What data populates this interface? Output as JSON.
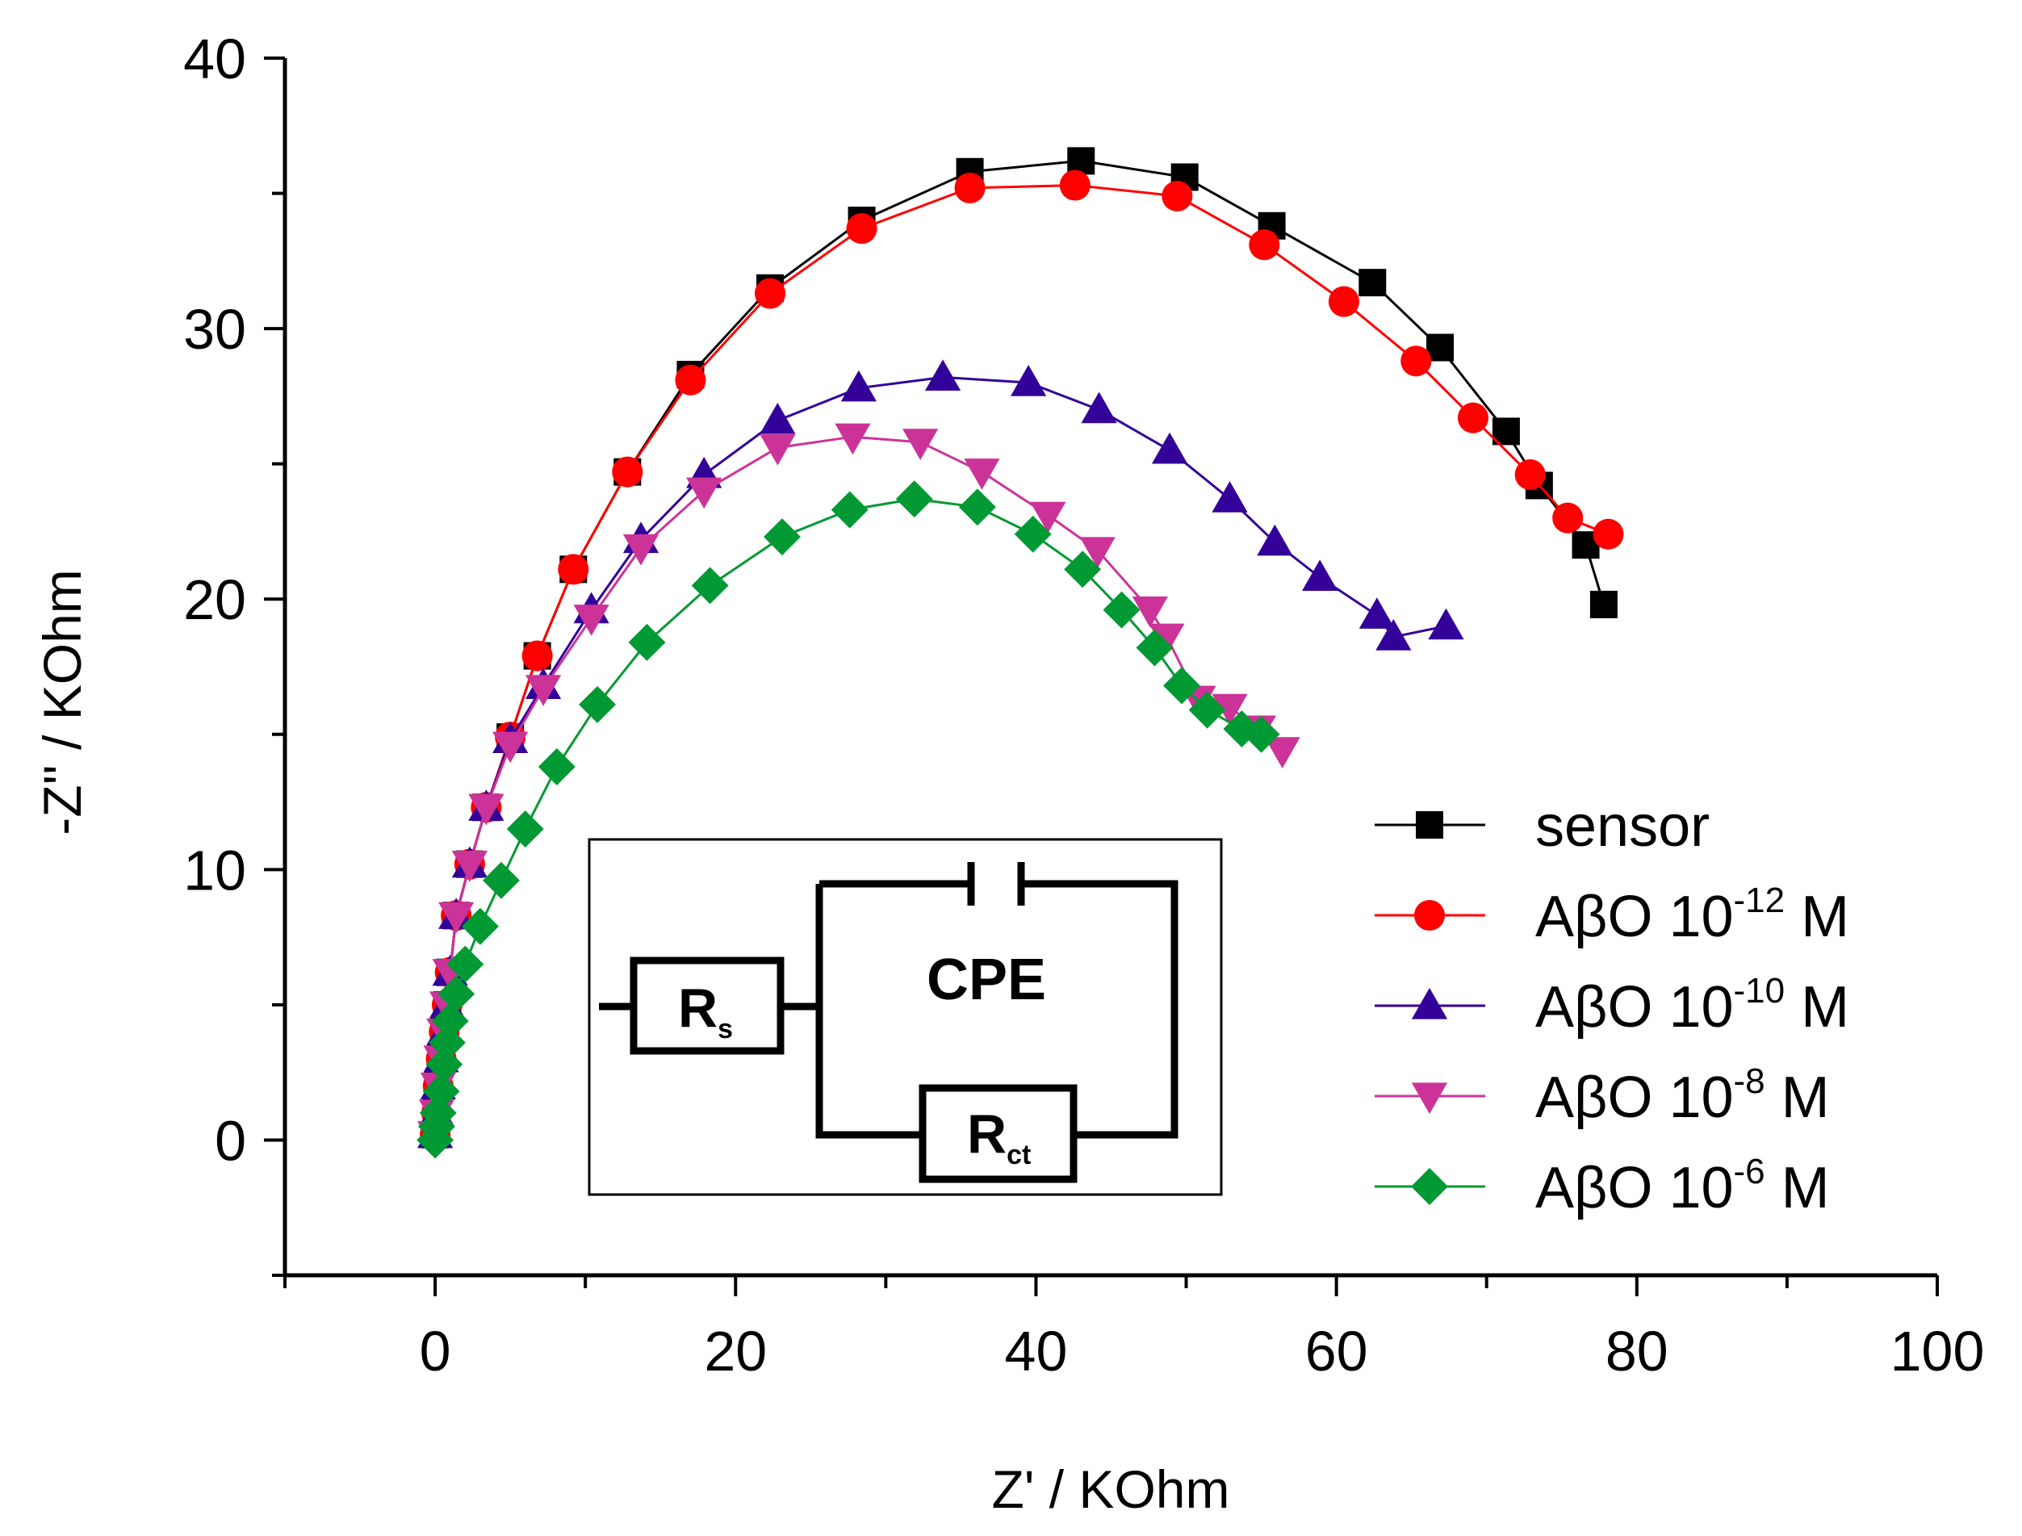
{
  "chart_data": {
    "type": "scatter",
    "title": "",
    "xlabel": "Z' / KOhm",
    "ylabel": "-Z'' / KOhm",
    "xlim": [
      -10,
      100
    ],
    "ylim": [
      -5,
      40
    ],
    "x_ticks": [
      0,
      20,
      40,
      60,
      80,
      100
    ],
    "y_ticks": [
      0,
      10,
      20,
      30,
      40
    ],
    "x_tick_labels": [
      "0",
      "20",
      "40",
      "60",
      "80",
      "100"
    ],
    "y_tick_labels": [
      "0",
      "10",
      "20",
      "30",
      "40"
    ],
    "legend_position": "lower-right",
    "series": [
      {
        "name": "sensor",
        "label_base": "sensor",
        "label_exp": "",
        "label_unit": "",
        "marker": "square",
        "color": "#000000",
        "x": [
          0.0,
          0.1,
          0.2,
          0.4,
          0.6,
          0.8,
          1.0,
          1.4,
          2.3,
          3.4,
          5.0,
          6.8,
          9.2,
          12.8,
          17.0,
          22.3,
          28.4,
          35.6,
          43.0,
          49.9,
          55.7,
          62.4,
          66.9,
          71.3,
          73.5,
          76.6,
          77.8
        ],
        "y": [
          0.2,
          1.0,
          2.0,
          3.0,
          4.0,
          5.0,
          6.2,
          8.3,
          10.2,
          12.3,
          14.9,
          17.9,
          21.1,
          24.7,
          28.3,
          31.5,
          34.0,
          35.8,
          36.2,
          35.6,
          33.8,
          31.7,
          29.3,
          26.2,
          24.2,
          22.0,
          19.8
        ]
      },
      {
        "name": "AβO 10-12 M",
        "label_base": "AβO 10",
        "label_exp": "-12",
        "label_unit": " M",
        "marker": "circle",
        "color": "#ff0000",
        "x": [
          0.0,
          0.1,
          0.2,
          0.4,
          0.6,
          0.8,
          1.0,
          1.4,
          2.3,
          3.4,
          5.0,
          6.8,
          9.2,
          12.8,
          17.0,
          22.3,
          28.4,
          35.6,
          42.6,
          49.4,
          55.2,
          60.5,
          65.3,
          69.1,
          72.9,
          75.4,
          78.1
        ],
        "y": [
          0.2,
          1.0,
          2.0,
          3.0,
          4.0,
          5.0,
          6.2,
          8.3,
          10.2,
          12.3,
          14.9,
          17.9,
          21.1,
          24.7,
          28.1,
          31.3,
          33.7,
          35.2,
          35.3,
          34.9,
          33.1,
          31.0,
          28.8,
          26.7,
          24.6,
          23.0,
          22.4
        ]
      },
      {
        "name": "AβO 10-10 M",
        "label_base": "AβO 10",
        "label_exp": "-10",
        "label_unit": " M",
        "marker": "triangle-up",
        "color": "#330099",
        "x": [
          0.0,
          0.1,
          0.2,
          0.4,
          0.6,
          0.8,
          1.0,
          1.4,
          2.3,
          3.4,
          5.0,
          7.2,
          10.4,
          13.7,
          17.9,
          22.8,
          28.2,
          33.8,
          39.5,
          44.2,
          48.9,
          52.9,
          55.9,
          58.9,
          62.7,
          63.8,
          67.3
        ],
        "y": [
          0.2,
          1.0,
          2.0,
          3.0,
          4.0,
          5.0,
          6.2,
          8.3,
          10.2,
          12.3,
          14.8,
          16.8,
          19.6,
          22.2,
          24.6,
          26.6,
          27.8,
          28.2,
          28.0,
          27.0,
          25.5,
          23.7,
          22.1,
          20.8,
          19.4,
          18.6,
          19.0
        ]
      },
      {
        "name": "AβO 10-8 M",
        "label_base": "AβO 10",
        "label_exp": "-8",
        "label_unit": " M",
        "marker": "triangle-down",
        "color": "#cc3399",
        "x": [
          0.0,
          0.1,
          0.2,
          0.4,
          0.6,
          0.8,
          1.0,
          1.4,
          2.3,
          3.4,
          5.0,
          7.2,
          10.4,
          13.7,
          17.9,
          22.8,
          27.8,
          32.3,
          36.4,
          40.8,
          44.1,
          47.6,
          48.7,
          50.8,
          52.9,
          54.8,
          56.4
        ],
        "y": [
          0.2,
          1.0,
          2.0,
          3.0,
          4.0,
          5.0,
          6.2,
          8.3,
          10.2,
          12.3,
          14.6,
          16.7,
          19.3,
          21.9,
          24.0,
          25.6,
          26.0,
          25.8,
          24.7,
          23.1,
          21.8,
          19.6,
          18.6,
          16.3,
          16.0,
          15.2,
          14.4
        ]
      },
      {
        "name": "AβO 10-6 M",
        "label_base": "AβO 10",
        "label_exp": "-6",
        "label_unit": " M",
        "marker": "diamond",
        "color": "#009933",
        "x": [
          0.0,
          0.1,
          0.2,
          0.4,
          0.6,
          0.8,
          1.0,
          1.4,
          2.0,
          3.0,
          4.4,
          6.0,
          8.1,
          10.8,
          14.1,
          18.3,
          23.1,
          27.6,
          31.9,
          36.1,
          39.8,
          43.1,
          45.7,
          47.9,
          49.7,
          51.4,
          53.7,
          55.0
        ],
        "y": [
          0.0,
          0.5,
          1.0,
          1.8,
          2.8,
          3.6,
          4.4,
          5.4,
          6.5,
          7.9,
          9.6,
          11.5,
          13.8,
          16.1,
          18.4,
          20.5,
          22.3,
          23.3,
          23.7,
          23.4,
          22.4,
          21.1,
          19.6,
          18.2,
          16.8,
          15.9,
          15.2,
          15.0
        ]
      }
    ],
    "inset": {
      "type": "equivalent-circuit",
      "rs_label": "R",
      "rs_sub": "s",
      "cpe_label": "CPE",
      "rct_label": "R",
      "rct_sub": "ct"
    }
  }
}
